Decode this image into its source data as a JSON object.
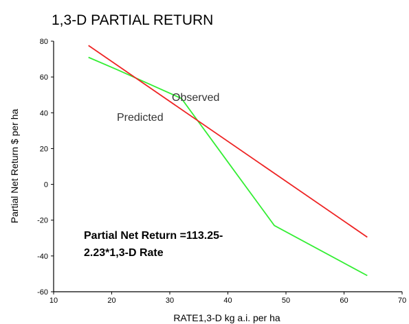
{
  "chart_data": {
    "type": "line",
    "title": "1,3-D PARTIAL RETURN",
    "xlabel": "RATE1,3-D kg a.i. per ha",
    "ylabel": "Partial Net Return $ per ha",
    "xlim": [
      10,
      70
    ],
    "ylim": [
      -60,
      80
    ],
    "xticks": [
      10,
      20,
      30,
      40,
      50,
      60,
      70
    ],
    "yticks": [
      -60,
      -40,
      -20,
      0,
      20,
      40,
      60,
      80
    ],
    "grid": false,
    "series": [
      {
        "name": "Observed",
        "color": "#33ee33",
        "x": [
          16,
          21,
          32,
          41,
          48,
          64
        ],
        "y": [
          71,
          64,
          48,
          8,
          -23,
          -51
        ]
      },
      {
        "name": "Predicted",
        "color": "#ee2222",
        "x": [
          16,
          64
        ],
        "y": [
          77.6,
          -29.5
        ]
      }
    ],
    "annotations": [
      "Partial Net Return =113.25-",
      "2.23*1,3-D Rate"
    ]
  }
}
